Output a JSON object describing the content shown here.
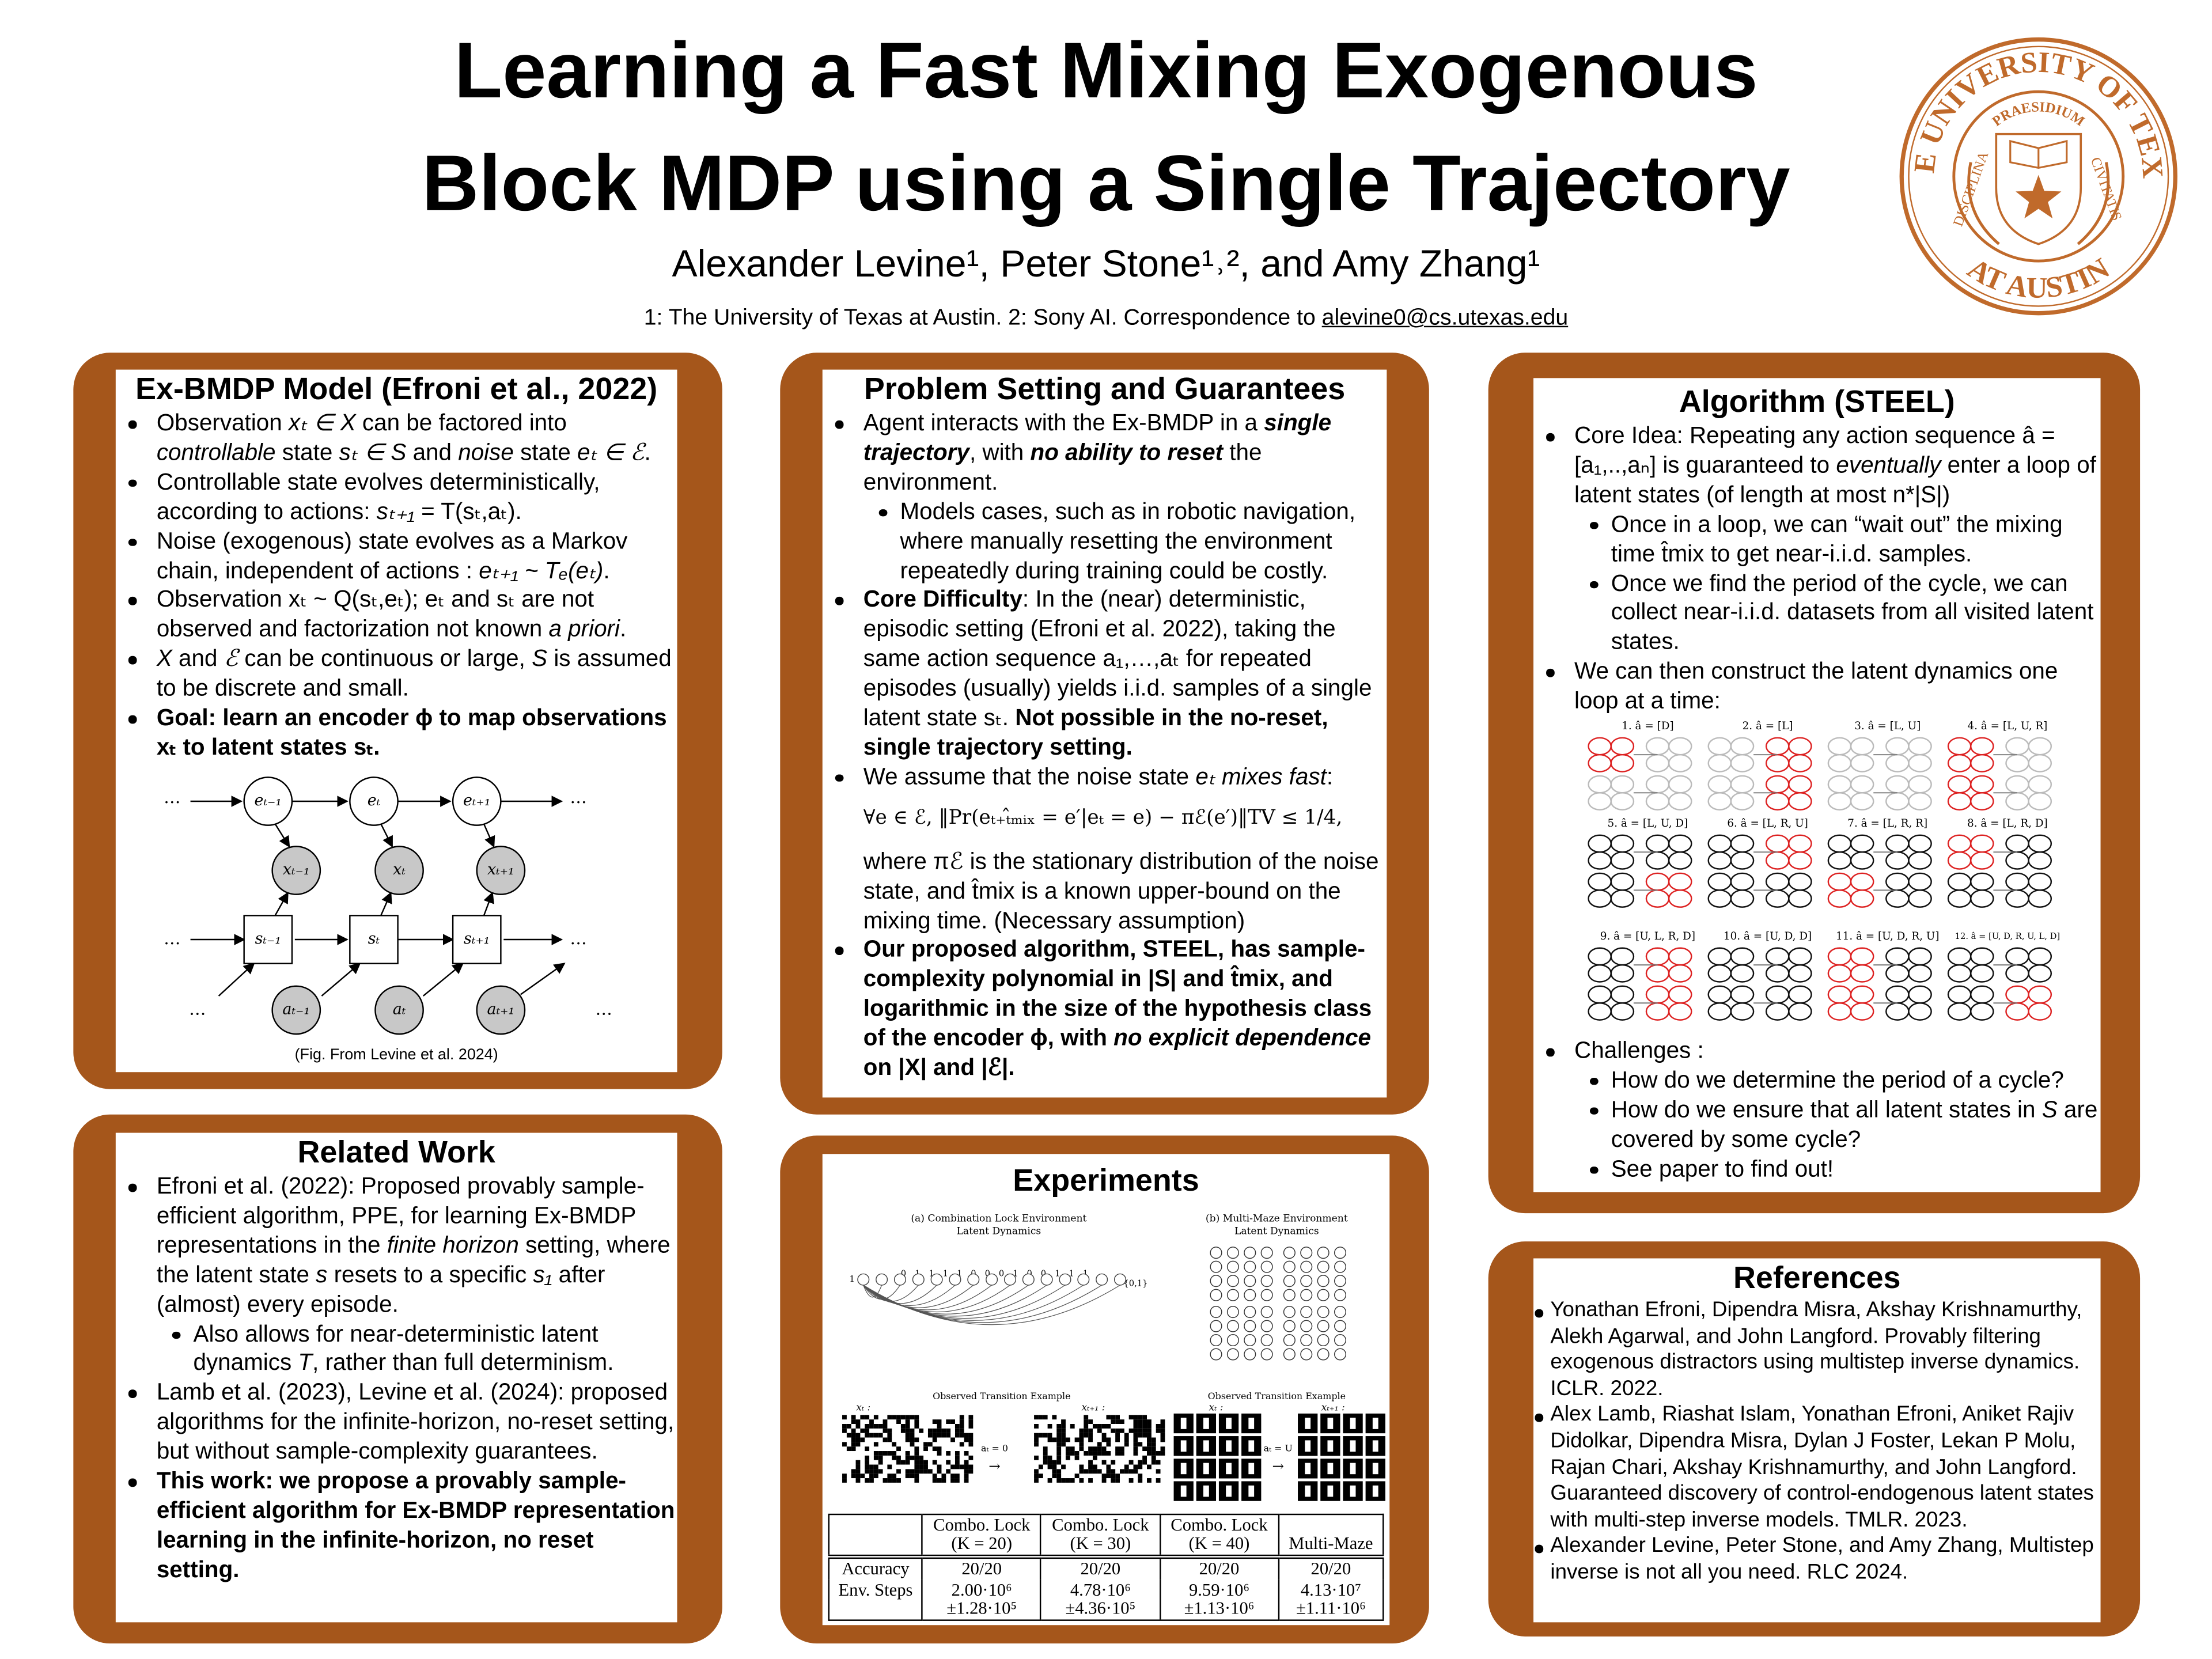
{
  "header": {
    "title_lines": [
      "Learning a Fast Mixing Exogenous",
      "Block MDP using a Single Trajectory"
    ],
    "authors": "Alexander Levine¹, Peter Stone¹˒², and Amy Zhang¹",
    "affiliation": "1: The University of Texas at Austin. 2: Sony AI. Correspondence to ",
    "email": "alevine0@cs.utexas.edu"
  },
  "seal": {
    "outer_top": "THE UNIVERSITY OF TEXAS",
    "outer_bottom": "AT AUSTIN",
    "inner_top": "PRAESIDIUM",
    "left": "DISCIPLINA",
    "right": "CIVITATIS"
  },
  "panels": {
    "model": {
      "title": "Ex-BMDP Model (Efroni et al., 2022)",
      "bullets": [
        {
          "text": [
            "Observation ",
            {
              "i": "xₜ ∈ X"
            },
            " can be factored into ",
            {
              "i": "controllable"
            },
            " state ",
            {
              "i": "sₜ ∈ S"
            },
            " and ",
            {
              "i": "noise"
            },
            " state ",
            {
              "i": "eₜ ∈ ℰ"
            },
            "."
          ]
        },
        {
          "text": [
            "Controllable state evolves deterministically, according to actions: ",
            {
              "i": "sₜ₊₁"
            },
            " = T(sₜ,aₜ)."
          ]
        },
        {
          "text": [
            "Noise (exogenous) state evolves as a Markov chain, independent of actions : ",
            {
              "i": "eₜ₊₁ ~ Tₑ(eₜ)"
            },
            "."
          ]
        },
        {
          "text": [
            "Observation xₜ ~ Q(sₜ,eₜ); eₜ and sₜ are not observed and factorization not known ",
            {
              "i": "a priori"
            },
            "."
          ]
        },
        {
          "text": [
            {
              "i": "X"
            },
            " and ",
            {
              "i": "ℰ"
            },
            " can be continuous or large, ",
            {
              "i": "S"
            },
            " is assumed to be discrete and small."
          ]
        },
        {
          "text": [
            {
              "b": "Goal: learn an encoder ϕ to map observations xₜ to latent states sₜ."
            }
          ]
        }
      ],
      "figure": {
        "e": [
          "eₜ₋₁",
          "eₜ",
          "eₜ₊₁"
        ],
        "x": [
          "xₜ₋₁",
          "xₜ",
          "xₜ₊₁"
        ],
        "s": [
          "sₜ₋₁",
          "sₜ",
          "sₜ₊₁"
        ],
        "a": [
          "aₜ₋₁",
          "aₜ",
          "aₜ₊₁"
        ],
        "ellipsis": "…",
        "caption": "(Fig. From Levine et al. 2024)"
      }
    },
    "problem": {
      "title": "Problem Setting and Guarantees",
      "bullets": [
        {
          "text": [
            "Agent interacts with the Ex-BMDP in a ",
            {
              "bi": "single trajectory"
            },
            ", with ",
            {
              "bi": "no ability to reset"
            },
            " the environment."
          ],
          "sub": [
            {
              "text": "Models cases, such as in robotic navigation, where manually resetting the environment repeatedly during training could be costly."
            }
          ]
        },
        {
          "text": [
            {
              "b": "Core Difficulty"
            },
            ": In the (near) deterministic, episodic setting (Efroni et al. 2022), taking the same action sequence a₁,…,aₜ for repeated episodes (usually) yields i.i.d. samples of a single latent state sₜ. ",
            {
              "b": "Not possible in the no-reset, single trajectory setting."
            }
          ]
        },
        {
          "text": [
            "We assume that the noise state ",
            {
              "i": "eₜ mixes fast"
            },
            ":"
          ],
          "formula": "∀e ∈ ℰ,  ‖Pr(eₜ₊ₜ̂ₘᵢₓ = e′|eₜ = e) − πℰ(e′)‖TV ≤ 1/4,",
          "after": "where πℰ is the stationary distribution of the noise state, and t̂mix is a known upper-bound on the mixing time. (Necessary assumption)"
        },
        {
          "text": [
            {
              "b": "Our proposed algorithm, STEEL, has sample-complexity polynomial in |S| and t̂mix, and logarithmic in the size of the hypothesis class of the encoder ϕ, with "
            },
            {
              "bi": "no explicit dependence"
            },
            {
              "b": " on |X| and |ℰ|."
            }
          ]
        }
      ]
    },
    "algorithm": {
      "title": "Algorithm (STEEL)",
      "bullets": [
        {
          "text": [
            "Core Idea: Repeating any action sequence â = [a₁,..,aₙ] is guaranteed to ",
            {
              "i": "eventually"
            },
            " enter a loop of latent states (of length at most n*|S|)"
          ],
          "sub": [
            {
              "text": "Once in a loop, we can “wait out” the mixing time t̂mix to get near-i.i.d. samples."
            },
            {
              "text": "Once we find the period of the cycle, we can collect near-i.i.d. datasets from all visited latent states."
            }
          ]
        },
        {
          "text": "We can then construct the latent dynamics one loop at a time:"
        }
      ],
      "figure": {
        "labels": [
          "1. â = [D]",
          "2. â = [L]",
          "3. â = [L, U]",
          "4. â = [L, U, R]",
          "5. â = [L, U, D]",
          "6. â = [L, R, U]",
          "7. â = [L, R, R]",
          "8. â = [L, R, D]",
          "9. â = [U, L, R, D]",
          "10. â = [U, D, D]",
          "11. â = [U, D, R, U]",
          "12. â = [U, D, R, U, L, D]"
        ]
      },
      "bullets_after": [
        {
          "text": "Challenges :",
          "sub": [
            {
              "text": "How do we determine the period of a cycle?"
            },
            {
              "text": [
                "How do we ensure that all latent states in ",
                {
                  "i": "S"
                },
                " are covered by some cycle?"
              ]
            },
            {
              "text": "See paper to find out!"
            }
          ]
        }
      ]
    },
    "related": {
      "title": "Related Work",
      "bullets": [
        {
          "text": [
            "Efroni et al. (2022): Proposed provably sample-efficient algorithm, PPE, for learning Ex-BMDP representations in the ",
            {
              "i": "finite horizon"
            },
            " setting, where the latent state ",
            {
              "i": "s"
            },
            " resets to a specific ",
            {
              "i": "s₁"
            },
            " after (almost) every episode."
          ],
          "sub": [
            {
              "text": [
                "Also allows for near-deterministic latent dynamics ",
                {
                  "i": "T"
                },
                ", rather than full determinism."
              ]
            }
          ]
        },
        {
          "text": "Lamb et al. (2023), Levine et al. (2024): proposed algorithms for the infinite-horizon, no-reset setting, but without sample-complexity guarantees."
        },
        {
          "text": [
            {
              "b": "This work: we propose a provably sample-efficient algorithm for Ex-BMDP representation learning in the infinite-horizon, no reset setting."
            }
          ]
        }
      ]
    },
    "experiments": {
      "title": "Experiments",
      "figure": {
        "a_title": "(a) Combination Lock Environment",
        "b_title": "(b) Multi-Maze Environment",
        "latent": "Latent Dynamics",
        "observed": "Observed Transition Example",
        "x_t": "xₜ :",
        "x_t1": "xₜ₊₁ :",
        "action_a": "aₜ = 0",
        "action_b": "aₜ = U",
        "arrow": "→",
        "lock_first": "1",
        "lock_digits": "0 1 1 1 1 0 0 0 1 0 0 1 1 1",
        "lock_last": "{0,1}"
      },
      "table": {
        "header": [
          [
            "Combo. Lock",
            "(K = 20)"
          ],
          [
            "Combo. Lock",
            "(K = 30)"
          ],
          [
            "Combo. Lock",
            "(K = 40)"
          ],
          [
            "Multi-Maze"
          ]
        ],
        "rows": [
          {
            "label": "Accuracy",
            "cells": [
              [
                "20/20"
              ],
              [
                "20/20"
              ],
              [
                "20/20"
              ],
              [
                "20/20"
              ]
            ]
          },
          {
            "label": "Env. Steps",
            "cells": [
              [
                "2.00·10⁶",
                "±1.28·10⁵"
              ],
              [
                "4.78·10⁶",
                "±4.36·10⁵"
              ],
              [
                "9.59·10⁶",
                "±1.13·10⁶"
              ],
              [
                "4.13·10⁷",
                "±1.11·10⁶"
              ]
            ]
          }
        ]
      }
    },
    "references": {
      "title": "References",
      "items": [
        "Yonathan Efroni, Dipendra Misra, Akshay Krishnamurthy, Alekh Agarwal, and John Langford. Provably filtering exogenous distractors using multistep inverse dynamics. ICLR. 2022.",
        "Alex Lamb, Riashat Islam, Yonathan Efroni, Aniket Rajiv Didolkar, Dipendra Misra, Dylan J Foster, Lekan P Molu, Rajan Chari, Akshay Krishnamurthy, and John Langford. Guaranteed discovery of control-endogenous latent states with multi-step inverse models. TMLR. 2023.",
        "Alexander Levine, Peter Stone, and Amy Zhang, Multistep inverse is not all you need. RLC 2024."
      ]
    }
  }
}
